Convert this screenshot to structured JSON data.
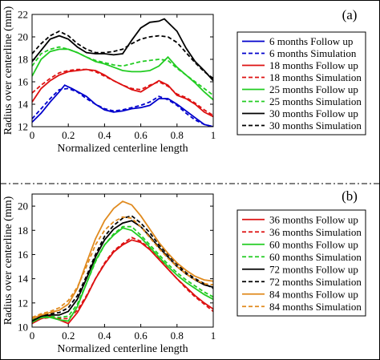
{
  "chart_data": [
    {
      "type": "line",
      "panel_label": "(a)",
      "xlabel": "Normalized centerline length",
      "ylabel": "Radius over centerline (mm)",
      "xlim": [
        0,
        1
      ],
      "ylim": [
        12,
        22
      ],
      "xticks": [
        "0",
        "0.2",
        "0.4",
        "0.6",
        "0.8",
        "1"
      ],
      "yticks": [
        "12",
        "14",
        "16",
        "18",
        "20",
        "22"
      ],
      "legend_position": "right",
      "series": [
        {
          "name": "6 months Follow up",
          "color": "#0000cc",
          "dash": false,
          "x": [
            0,
            0.05,
            0.1,
            0.15,
            0.18,
            0.22,
            0.3,
            0.35,
            0.4,
            0.45,
            0.5,
            0.55,
            0.6,
            0.65,
            0.7,
            0.75,
            0.8,
            0.85,
            0.9,
            0.95,
            1
          ],
          "y": [
            12.4,
            13.2,
            14.2,
            15.1,
            15.7,
            15.4,
            14.7,
            14.0,
            13.5,
            13.3,
            13.4,
            13.6,
            13.7,
            13.9,
            14.5,
            14.5,
            14.0,
            13.4,
            12.8,
            12.2,
            12.0
          ]
        },
        {
          "name": "6 months Simulation",
          "color": "#0000cc",
          "dash": true,
          "x": [
            0,
            0.05,
            0.1,
            0.15,
            0.2,
            0.25,
            0.3,
            0.35,
            0.4,
            0.45,
            0.5,
            0.55,
            0.6,
            0.65,
            0.7,
            0.75,
            0.8,
            0.85,
            0.9,
            0.95,
            1
          ],
          "y": [
            12.7,
            13.6,
            14.5,
            15.3,
            15.4,
            15.1,
            14.5,
            14.0,
            13.6,
            13.4,
            13.5,
            13.7,
            13.9,
            14.2,
            14.7,
            14.4,
            13.9,
            13.2,
            12.6,
            12.2,
            12.0
          ]
        },
        {
          "name": "18 months Follow up",
          "color": "#dd1111",
          "dash": false,
          "x": [
            0,
            0.05,
            0.1,
            0.15,
            0.2,
            0.25,
            0.3,
            0.35,
            0.4,
            0.45,
            0.5,
            0.55,
            0.6,
            0.65,
            0.7,
            0.75,
            0.8,
            0.85,
            0.9,
            0.95,
            1
          ],
          "y": [
            14.2,
            15.4,
            16.1,
            16.6,
            16.9,
            17.0,
            17.1,
            17.0,
            16.6,
            16.1,
            15.7,
            15.3,
            15.1,
            15.6,
            16.1,
            15.7,
            14.8,
            14.5,
            14.0,
            13.3,
            12.9
          ]
        },
        {
          "name": "18 months Simulation",
          "color": "#dd1111",
          "dash": true,
          "x": [
            0,
            0.05,
            0.1,
            0.15,
            0.2,
            0.25,
            0.3,
            0.35,
            0.4,
            0.45,
            0.5,
            0.55,
            0.6,
            0.65,
            0.7,
            0.75,
            0.8,
            0.85,
            0.9,
            0.95,
            1
          ],
          "y": [
            15.0,
            15.7,
            16.3,
            16.8,
            17.0,
            17.1,
            17.1,
            16.9,
            16.5,
            16.1,
            15.7,
            15.4,
            15.3,
            15.7,
            16.0,
            15.6,
            14.9,
            14.6,
            14.1,
            13.5,
            13.0
          ]
        },
        {
          "name": "25 months Follow up",
          "color": "#22cc22",
          "dash": false,
          "x": [
            0,
            0.05,
            0.1,
            0.15,
            0.2,
            0.25,
            0.3,
            0.35,
            0.4,
            0.45,
            0.5,
            0.55,
            0.6,
            0.65,
            0.7,
            0.75,
            0.8,
            0.85,
            0.9,
            0.95,
            1
          ],
          "y": [
            16.5,
            18.0,
            18.7,
            18.9,
            18.9,
            18.6,
            18.2,
            17.8,
            17.6,
            17.3,
            17.0,
            16.9,
            16.9,
            17.0,
            17.4,
            18.2,
            17.3,
            16.6,
            15.9,
            15.1,
            14.4
          ]
        },
        {
          "name": "25 months Simulation",
          "color": "#22cc22",
          "dash": true,
          "x": [
            0,
            0.05,
            0.1,
            0.15,
            0.2,
            0.25,
            0.3,
            0.35,
            0.4,
            0.45,
            0.5,
            0.55,
            0.6,
            0.65,
            0.7,
            0.75,
            0.8,
            0.85,
            0.9,
            0.95,
            1
          ],
          "y": [
            17.4,
            18.5,
            18.9,
            19.1,
            18.9,
            18.6,
            18.2,
            17.9,
            17.7,
            17.5,
            17.4,
            17.6,
            17.8,
            17.9,
            18.0,
            17.9,
            17.2,
            16.6,
            16.0,
            15.4,
            14.8
          ]
        },
        {
          "name": "30 months Follow up",
          "color": "#000000",
          "dash": false,
          "x": [
            0,
            0.05,
            0.1,
            0.15,
            0.2,
            0.25,
            0.3,
            0.35,
            0.4,
            0.45,
            0.5,
            0.55,
            0.6,
            0.65,
            0.7,
            0.73,
            0.8,
            0.85,
            0.9,
            0.95,
            1
          ],
          "y": [
            17.8,
            18.8,
            19.8,
            20.1,
            19.8,
            19.1,
            18.6,
            18.5,
            18.5,
            18.4,
            18.5,
            19.7,
            20.8,
            21.3,
            21.4,
            21.6,
            20.5,
            19.0,
            17.8,
            17.0,
            16.1
          ]
        },
        {
          "name": "30 months Simulation",
          "color": "#000000",
          "dash": true,
          "x": [
            0,
            0.05,
            0.1,
            0.15,
            0.2,
            0.25,
            0.3,
            0.35,
            0.4,
            0.45,
            0.5,
            0.55,
            0.6,
            0.65,
            0.7,
            0.75,
            0.8,
            0.85,
            0.9,
            0.95,
            1
          ],
          "y": [
            18.5,
            19.4,
            20.1,
            20.5,
            20.1,
            19.4,
            18.9,
            18.6,
            18.6,
            18.7,
            18.9,
            19.4,
            19.8,
            20.0,
            20.1,
            20.0,
            19.5,
            18.6,
            17.7,
            16.9,
            16.3
          ]
        }
      ]
    },
    {
      "type": "line",
      "panel_label": "(b)",
      "xlabel": "Normalized centerline length",
      "ylabel": "Radius over centerline (mm)",
      "xlim": [
        0,
        1
      ],
      "ylim": [
        10,
        21
      ],
      "xticks": [
        "0",
        "0.2",
        "0.4",
        "0.6",
        "0.8",
        "1"
      ],
      "yticks": [
        "10",
        "12",
        "14",
        "16",
        "18",
        "20"
      ],
      "legend_position": "right",
      "series": [
        {
          "name": "36 months Follow up",
          "color": "#dd1111",
          "dash": false,
          "x": [
            0,
            0.05,
            0.1,
            0.15,
            0.2,
            0.25,
            0.3,
            0.35,
            0.4,
            0.45,
            0.5,
            0.55,
            0.6,
            0.65,
            0.7,
            0.75,
            0.8,
            0.85,
            0.9,
            0.95,
            1
          ],
          "y": [
            10.3,
            10.7,
            10.9,
            10.6,
            10.3,
            11.2,
            12.5,
            14.0,
            15.2,
            16.2,
            16.8,
            17.2,
            17.0,
            16.4,
            15.6,
            14.8,
            14.0,
            13.3,
            12.6,
            12.0,
            11.5
          ]
        },
        {
          "name": "36 months Simulation",
          "color": "#dd1111",
          "dash": true,
          "x": [
            0,
            0.05,
            0.1,
            0.15,
            0.2,
            0.25,
            0.3,
            0.35,
            0.4,
            0.45,
            0.5,
            0.55,
            0.6,
            0.65,
            0.7,
            0.75,
            0.8,
            0.85,
            0.9,
            0.95,
            1
          ],
          "y": [
            10.5,
            10.7,
            10.8,
            10.7,
            10.7,
            11.4,
            12.6,
            14.0,
            15.3,
            16.3,
            16.9,
            17.4,
            17.1,
            16.5,
            15.7,
            14.8,
            14.0,
            13.2,
            12.5,
            11.9,
            11.3
          ]
        },
        {
          "name": "60 months Follow up",
          "color": "#22cc22",
          "dash": false,
          "x": [
            0,
            0.05,
            0.1,
            0.15,
            0.2,
            0.25,
            0.3,
            0.35,
            0.4,
            0.45,
            0.5,
            0.55,
            0.6,
            0.65,
            0.7,
            0.75,
            0.8,
            0.85,
            0.9,
            0.95,
            1
          ],
          "y": [
            10.4,
            10.8,
            10.8,
            10.6,
            10.5,
            11.7,
            13.6,
            15.5,
            16.8,
            17.6,
            18.2,
            18.0,
            17.4,
            16.6,
            15.8,
            15.0,
            14.3,
            13.7,
            13.2,
            12.7,
            12.3
          ]
        },
        {
          "name": "60 months Simulation",
          "color": "#22cc22",
          "dash": true,
          "x": [
            0,
            0.05,
            0.1,
            0.15,
            0.2,
            0.25,
            0.3,
            0.35,
            0.4,
            0.45,
            0.5,
            0.55,
            0.6,
            0.65,
            0.7,
            0.75,
            0.8,
            0.85,
            0.9,
            0.95,
            1
          ],
          "y": [
            10.6,
            10.8,
            10.9,
            10.8,
            10.9,
            11.9,
            13.6,
            15.4,
            16.8,
            17.7,
            18.3,
            18.3,
            17.6,
            16.8,
            16.0,
            15.2,
            14.5,
            13.9,
            13.4,
            12.9,
            12.5
          ]
        },
        {
          "name": "72 months Follow up",
          "color": "#000000",
          "dash": false,
          "x": [
            0,
            0.05,
            0.1,
            0.15,
            0.2,
            0.25,
            0.3,
            0.35,
            0.4,
            0.45,
            0.5,
            0.55,
            0.6,
            0.65,
            0.7,
            0.75,
            0.8,
            0.85,
            0.9,
            0.95,
            1
          ],
          "y": [
            10.5,
            10.9,
            11.0,
            11.0,
            11.3,
            12.3,
            14.0,
            15.8,
            17.2,
            18.1,
            18.6,
            18.8,
            18.3,
            17.5,
            16.6,
            15.8,
            15.0,
            14.4,
            13.9,
            13.5,
            13.3
          ]
        },
        {
          "name": "72 months Simulation",
          "color": "#000000",
          "dash": true,
          "x": [
            0,
            0.05,
            0.1,
            0.15,
            0.2,
            0.25,
            0.3,
            0.35,
            0.4,
            0.45,
            0.5,
            0.55,
            0.6,
            0.65,
            0.7,
            0.75,
            0.8,
            0.85,
            0.9,
            0.95,
            1
          ],
          "y": [
            10.7,
            11.0,
            11.1,
            11.2,
            11.6,
            12.6,
            14.2,
            16.0,
            17.5,
            18.4,
            19.0,
            19.2,
            18.6,
            17.8,
            16.8,
            16.0,
            15.2,
            14.5,
            14.0,
            13.6,
            13.2
          ]
        },
        {
          "name": "84 months Follow up",
          "color": "#e08a1e",
          "dash": false,
          "x": [
            0,
            0.05,
            0.1,
            0.15,
            0.2,
            0.25,
            0.3,
            0.35,
            0.4,
            0.45,
            0.5,
            0.55,
            0.6,
            0.65,
            0.7,
            0.75,
            0.8,
            0.85,
            0.9,
            0.95,
            1
          ],
          "y": [
            10.7,
            11.0,
            11.2,
            11.4,
            11.9,
            13.2,
            15.3,
            17.3,
            18.8,
            19.8,
            20.4,
            20.1,
            19.2,
            18.1,
            17.0,
            16.1,
            15.3,
            14.7,
            14.2,
            13.9,
            13.8
          ]
        },
        {
          "name": "84 months Simulation",
          "color": "#e08a1e",
          "dash": true,
          "x": [
            0,
            0.05,
            0.1,
            0.15,
            0.2,
            0.25,
            0.3,
            0.35,
            0.4,
            0.45,
            0.5,
            0.55,
            0.6,
            0.65,
            0.7,
            0.75,
            0.8,
            0.85,
            0.9,
            0.95,
            1
          ],
          "y": [
            10.8,
            11.1,
            11.3,
            11.6,
            12.2,
            13.3,
            15.0,
            16.8,
            18.0,
            18.7,
            19.1,
            19.0,
            18.3,
            17.4,
            16.5,
            15.7,
            15.0,
            14.4,
            13.9,
            13.6,
            13.5
          ]
        }
      ]
    }
  ]
}
